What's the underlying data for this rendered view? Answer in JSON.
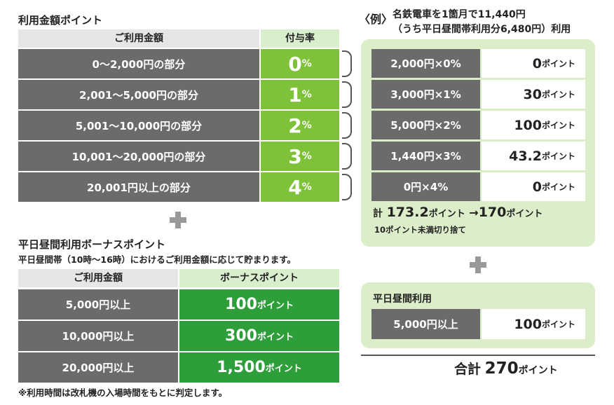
{
  "usage_points": {
    "title": "利用金額ポイント",
    "col_amount": "ご利用金額",
    "col_rate": "付与率",
    "rows": [
      {
        "range": "0〜2,000円の部分",
        "rate": "0",
        "unit": "%"
      },
      {
        "range": "2,001〜5,000円の部分",
        "rate": "1",
        "unit": "%"
      },
      {
        "range": "5,001〜10,000円の部分",
        "rate": "2",
        "unit": "%"
      },
      {
        "range": "10,001〜20,000円の部分",
        "rate": "3",
        "unit": "%"
      },
      {
        "range": "20,001円以上の部分",
        "rate": "4",
        "unit": "%"
      }
    ]
  },
  "bonus": {
    "title": "平日昼間利用ボーナスポイント",
    "subtitle": "平日昼間帯（10時〜16時）におけるご利用金額に応じて貯まります。",
    "col_amount": "ご利用金額",
    "col_points": "ボーナスポイント",
    "rows": [
      {
        "amount": "5,000円以上",
        "points": "100",
        "unit": "ポイント"
      },
      {
        "amount": "10,000円以上",
        "points": "300",
        "unit": "ポイント"
      },
      {
        "amount": "20,000円以上",
        "points": "1,500",
        "unit": "ポイント"
      }
    ],
    "note": "※利用時間は改札機の入場時間をもとに判定します。"
  },
  "example": {
    "label": "〈例〉",
    "line1": "名鉄電車を1箇月で11,440円",
    "line2": "（うち平日昼間帯利用分6,480円）利用",
    "rows": [
      {
        "calc": "2,000円×0%",
        "points": "0",
        "unit": "ポイント"
      },
      {
        "calc": "3,000円×1%",
        "points": "30",
        "unit": "ポイント"
      },
      {
        "calc": "5,000円×2%",
        "points": "100",
        "unit": "ポイント"
      },
      {
        "calc": "1,440円×3%",
        "points": "43.2",
        "unit": "ポイント"
      },
      {
        "calc": "0円×4%",
        "points": "0",
        "unit": "ポイント"
      }
    ],
    "total_prefix": "計",
    "total_value": "173.2",
    "total_unit": "ポイント",
    "total_arrow": "→",
    "total_rounded": "170",
    "total_rounded_unit": "ポイント",
    "rounding_note": "10ポイント未満切り捨て"
  },
  "weekday": {
    "title": "平日昼間利用",
    "amount": "5,000円以上",
    "points": "100",
    "unit": "ポイント"
  },
  "grand_total": {
    "label": "合計",
    "value": "270",
    "unit": "ポイント"
  },
  "colors": {
    "dark_cell": "#6b6b6b",
    "rate_green": "#7dc238",
    "bonus_green": "#2e9e3a",
    "panel_green": "#dceec9",
    "plus_gray": "#999999"
  },
  "icons": [
    "plus-icon",
    "brace-icon",
    "arrow-icon"
  ]
}
